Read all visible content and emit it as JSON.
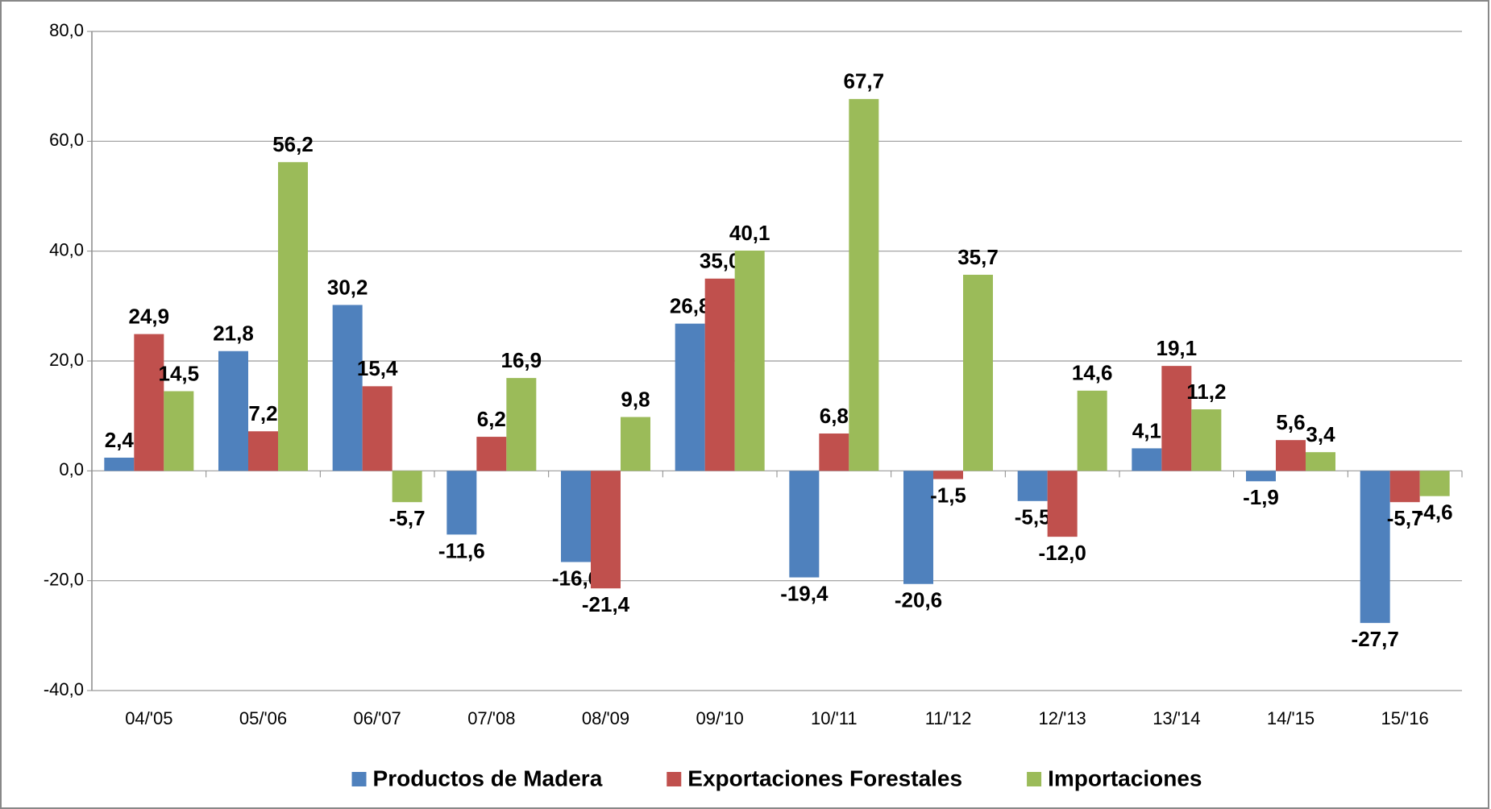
{
  "chart_data": {
    "type": "bar",
    "categories": [
      "04/'05",
      "05/'06",
      "06/'07",
      "07/'08",
      "08/'09",
      "09/'10",
      "10/'11",
      "11/'12",
      "12/'13",
      "13/'14",
      "14/'15",
      "15/'16"
    ],
    "series": [
      {
        "name": "Productos de Madera",
        "color": "#4f81bd",
        "values": [
          2.4,
          21.8,
          30.2,
          -11.6,
          -16.6,
          26.8,
          -19.4,
          -20.6,
          -5.5,
          4.1,
          -1.9,
          -27.7
        ],
        "value_labels": [
          "2,4",
          "21,8",
          "30,2",
          "-11,6",
          "-16,6",
          "26,8",
          "-19,4",
          "-20,6",
          "-5,5",
          "4,1",
          "-1,9",
          "-27,7"
        ]
      },
      {
        "name": "Exportaciones Forestales",
        "color": "#c0504d",
        "values": [
          24.9,
          7.2,
          15.4,
          6.2,
          -21.4,
          35.0,
          6.8,
          -1.5,
          -12.0,
          19.1,
          5.6,
          -5.7
        ],
        "value_labels": [
          "24,9",
          "7,2",
          "15,4",
          "6,2",
          "-21,4",
          "35,0",
          "6,8",
          "-1,5",
          "-12,0",
          "19,1",
          "5,6",
          "-5,7"
        ]
      },
      {
        "name": "Importaciones",
        "color": "#9bbb59",
        "values": [
          14.5,
          56.2,
          -5.7,
          16.9,
          9.8,
          40.1,
          67.7,
          35.7,
          14.6,
          11.2,
          3.4,
          -4.6
        ],
        "value_labels": [
          "14,5",
          "56,2",
          "-5,7",
          "16,9",
          "9,8",
          "40,1",
          "67,7",
          "35,7",
          "14,6",
          "11,2",
          "3,4",
          "-4,6"
        ]
      }
    ],
    "ylim": [
      -40,
      80
    ],
    "yticks": [
      {
        "value": -40,
        "label": "-40,0"
      },
      {
        "value": -20,
        "label": "-20,0"
      },
      {
        "value": 0,
        "label": "0,0"
      },
      {
        "value": 20,
        "label": "20,0"
      },
      {
        "value": 40,
        "label": "40,0"
      },
      {
        "value": 60,
        "label": "60,0"
      },
      {
        "value": 80,
        "label": "80,0"
      }
    ],
    "grid": true,
    "legend": "bottom"
  }
}
